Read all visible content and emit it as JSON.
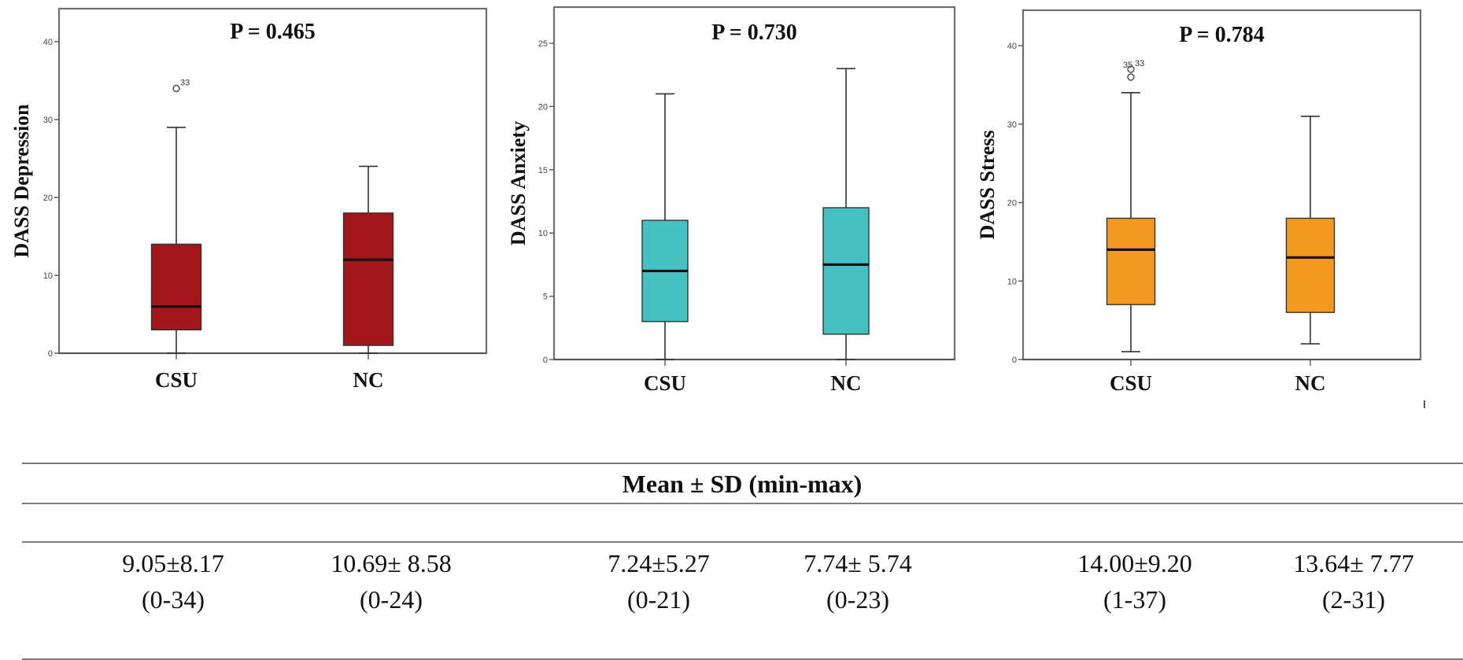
{
  "chart_data": [
    {
      "type": "box",
      "title": "P = 0.465",
      "ylabel": "DASS Depression",
      "xlabel": "",
      "ylim": [
        0,
        40
      ],
      "yticks": [
        0,
        10,
        20,
        30,
        40
      ],
      "color": "#A3161B",
      "categories": [
        "CSU",
        "NC"
      ],
      "series": [
        {
          "name": "CSU",
          "whisker_low": 0,
          "q1": 3,
          "median": 6,
          "q3": 14,
          "whisker_high": 29,
          "outliers": [
            {
              "value": 34,
              "label": "33"
            }
          ]
        },
        {
          "name": "NC",
          "whisker_low": 0,
          "q1": 1,
          "median": 12,
          "q3": 18,
          "whisker_high": 24,
          "outliers": []
        }
      ]
    },
    {
      "type": "box",
      "title": "P = 0.730",
      "ylabel": "DASS Anxiety",
      "xlabel": "",
      "ylim": [
        0,
        25
      ],
      "yticks": [
        0,
        5,
        10,
        15,
        20,
        25
      ],
      "color": "#45C1C4",
      "categories": [
        "CSU",
        "NC"
      ],
      "series": [
        {
          "name": "CSU",
          "whisker_low": 0,
          "q1": 3,
          "median": 7,
          "q3": 11,
          "whisker_high": 21,
          "outliers": []
        },
        {
          "name": "NC",
          "whisker_low": 0,
          "q1": 2,
          "median": 7.5,
          "q3": 12,
          "whisker_high": 23,
          "outliers": []
        }
      ]
    },
    {
      "type": "box",
      "title": "P = 0.784",
      "ylabel": "DASS Stress",
      "xlabel": "",
      "ylim": [
        0,
        40
      ],
      "yticks": [
        0,
        10,
        20,
        30,
        40
      ],
      "color": "#F4991F",
      "categories": [
        "CSU",
        "NC"
      ],
      "series": [
        {
          "name": "CSU",
          "whisker_low": 1,
          "q1": 7,
          "median": 14,
          "q3": 18,
          "whisker_high": 34,
          "outliers": [
            {
              "value": 36,
              "label": "35"
            },
            {
              "value": 37,
              "label": "33"
            }
          ]
        },
        {
          "name": "NC",
          "whisker_low": 2,
          "q1": 6,
          "median": 13,
          "q3": 18,
          "whisker_high": 31,
          "outliers": []
        }
      ]
    }
  ],
  "table": {
    "header": "Mean ± SD (min-max)",
    "cells": [
      {
        "line1": "9.05±8.17",
        "line2": "(0-34)"
      },
      {
        "line1": "10.69± 8.58",
        "line2": "(0-24)"
      },
      {
        "line1": "7.24±5.27",
        "line2": "(0-21)"
      },
      {
        "line1": "7.74± 5.74",
        "line2": "(0-23)"
      },
      {
        "line1": "14.00±9.20",
        "line2": "(1-37)"
      },
      {
        "line1": "13.64± 7.77",
        "line2": "(2-31)"
      }
    ]
  }
}
